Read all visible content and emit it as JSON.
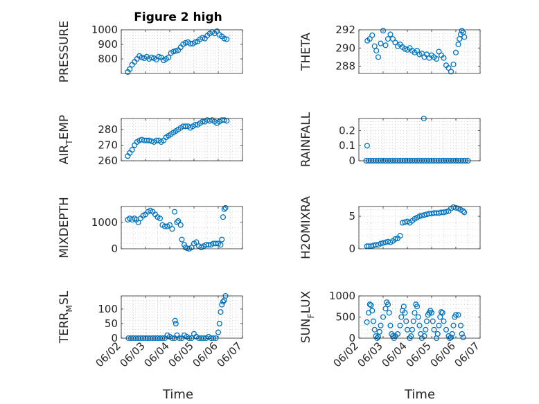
{
  "figure": {
    "title": "Figure 2 high",
    "x_axis_label": "Time"
  },
  "colors": {
    "marker": "#0072BD",
    "axis": "#262626",
    "grid": "#c8c8c8"
  },
  "chart_data": [
    {
      "type": "scatter",
      "title": "Figure 2 high",
      "ylabel": "PRESSURE",
      "ylabel_sub": "",
      "ylim": [
        700,
        1000
      ],
      "yticks": [
        800,
        900,
        1000
      ],
      "yticklabels": [
        "800",
        "900",
        "1000"
      ],
      "xlim": [
        2.0,
        7.0
      ],
      "xticks": [],
      "xticklabels": [],
      "grid": true,
      "points": {
        "x": [
          2.27,
          2.35,
          2.45,
          2.55,
          2.65,
          2.75,
          2.85,
          2.95,
          3.05,
          3.15,
          3.25,
          3.35,
          3.45,
          3.55,
          3.65,
          3.75,
          3.85,
          3.95,
          4.05,
          4.15,
          4.25,
          4.35,
          4.45,
          4.55,
          4.65,
          4.75,
          4.85,
          4.95,
          5.05,
          5.15,
          5.25,
          5.35,
          5.45,
          5.55,
          5.65,
          5.75,
          5.85,
          5.95,
          6.05,
          6.15,
          6.25,
          6.35
        ],
        "y": [
          710,
          730,
          760,
          780,
          800,
          820,
          810,
          805,
          815,
          800,
          810,
          805,
          795,
          815,
          810,
          790,
          800,
          810,
          840,
          850,
          855,
          860,
          880,
          900,
          910,
          915,
          905,
          905,
          915,
          920,
          935,
          945,
          940,
          960,
          975,
          985,
          975,
          990,
          965,
          955,
          940,
          935
        ]
      }
    },
    {
      "type": "scatter",
      "title": "",
      "ylabel": "THETA",
      "ylabel_sub": "",
      "ylim": [
        287.2,
        292.0
      ],
      "yticks": [
        288,
        290,
        292
      ],
      "yticklabels": [
        "288",
        "290",
        "292"
      ],
      "xlim": [
        2.0,
        7.0
      ],
      "xticks": [],
      "xticklabels": [],
      "grid": true,
      "points": {
        "x": [
          2.35,
          2.45,
          2.55,
          2.65,
          2.72,
          2.8,
          2.9,
          3.0,
          3.1,
          3.2,
          3.3,
          3.4,
          3.5,
          3.6,
          3.7,
          3.8,
          3.9,
          4.0,
          4.1,
          4.2,
          4.3,
          4.4,
          4.5,
          4.6,
          4.7,
          4.8,
          4.9,
          5.0,
          5.1,
          5.2,
          5.3,
          5.4,
          5.5,
          5.6,
          5.7,
          5.8,
          5.9,
          6.0,
          6.1,
          6.15,
          6.2,
          6.25,
          6.3,
          6.35
        ],
        "y": [
          290.8,
          291.0,
          291.4,
          290.2,
          289.7,
          289.0,
          290.5,
          291.9,
          290.3,
          291.0,
          291.5,
          291.0,
          290.6,
          290.2,
          290.4,
          290.1,
          289.9,
          289.8,
          290.0,
          289.7,
          289.5,
          289.7,
          289.3,
          289.4,
          289.0,
          289.3,
          288.9,
          289.2,
          289.0,
          288.8,
          289.6,
          289.2,
          288.9,
          288.1,
          287.8,
          287.4,
          288.2,
          289.5,
          290.4,
          291.0,
          291.5,
          291.9,
          291.7,
          291.2
        ]
      }
    },
    {
      "type": "scatter",
      "title": "",
      "ylabel": "AIR",
      "ylabel_sub": "T",
      "ylabel_suffix": "EMP",
      "ylim": [
        260,
        287
      ],
      "yticks": [
        260,
        270,
        280
      ],
      "yticklabels": [
        "260",
        "270",
        "280"
      ],
      "xlim": [
        2.0,
        7.0
      ],
      "xticks": [],
      "xticklabels": [],
      "grid": true,
      "points": {
        "x": [
          2.27,
          2.35,
          2.45,
          2.55,
          2.65,
          2.75,
          2.85,
          2.95,
          3.05,
          3.15,
          3.25,
          3.35,
          3.45,
          3.55,
          3.65,
          3.75,
          3.85,
          3.95,
          4.05,
          4.15,
          4.25,
          4.35,
          4.45,
          4.55,
          4.65,
          4.75,
          4.85,
          4.95,
          5.05,
          5.15,
          5.25,
          5.35,
          5.45,
          5.55,
          5.65,
          5.75,
          5.85,
          5.95,
          6.05,
          6.15,
          6.25,
          6.35
        ],
        "y": [
          263,
          265,
          267,
          270,
          272,
          273,
          273.5,
          273,
          273,
          273,
          272.5,
          272,
          273,
          273,
          272,
          273,
          275,
          276,
          277,
          278,
          279,
          280,
          281,
          282,
          282,
          282,
          281,
          282,
          283,
          283,
          284,
          285,
          285,
          286,
          285.5,
          286,
          285,
          284,
          285,
          286,
          286,
          285.5
        ]
      }
    },
    {
      "type": "scatter",
      "title": "",
      "ylabel": "RAINFALL",
      "ylabel_sub": "",
      "ylim": [
        0,
        0.28
      ],
      "yticks": [
        0,
        0.1,
        0.2
      ],
      "yticklabels": [
        "0",
        "0.1",
        "0.2"
      ],
      "xlim": [
        2.0,
        7.0
      ],
      "xticks": [],
      "xticklabels": [],
      "grid": true,
      "points": {
        "x": [
          2.3,
          2.4,
          2.5,
          2.6,
          2.7,
          2.8,
          2.9,
          3.0,
          3.1,
          3.2,
          3.3,
          3.4,
          3.5,
          3.6,
          3.7,
          3.8,
          3.9,
          4.0,
          4.1,
          4.2,
          4.3,
          4.4,
          4.5,
          4.6,
          4.7,
          4.8,
          4.9,
          5.0,
          5.1,
          5.2,
          5.3,
          5.4,
          5.5,
          5.6,
          5.7,
          5.8,
          5.9,
          6.0,
          6.1,
          6.2,
          6.3,
          6.4,
          6.5,
          2.34,
          4.68
        ],
        "y": [
          0,
          0,
          0,
          0,
          0,
          0,
          0,
          0,
          0,
          0,
          0,
          0,
          0,
          0,
          0,
          0,
          0,
          0,
          0,
          0,
          0,
          0,
          0,
          0,
          0,
          0,
          0,
          0,
          0,
          0,
          0,
          0,
          0,
          0,
          0,
          0,
          0,
          0,
          0,
          0,
          0,
          0,
          0,
          0.1,
          0.28
        ]
      }
    },
    {
      "type": "scatter",
      "title": "",
      "ylabel": "MIXDEPTH",
      "ylabel_sub": "",
      "ylim": [
        0,
        1600
      ],
      "yticks": [
        0,
        1000
      ],
      "yticklabels": [
        "0",
        "1000"
      ],
      "xlim": [
        2.0,
        7.0
      ],
      "xticks": [],
      "xticklabels": [],
      "grid": true,
      "points": {
        "x": [
          2.27,
          2.35,
          2.45,
          2.55,
          2.62,
          2.7,
          2.8,
          2.9,
          3.0,
          3.1,
          3.2,
          3.3,
          3.4,
          3.5,
          3.6,
          3.7,
          3.8,
          3.9,
          4.0,
          4.1,
          4.2,
          4.3,
          4.35,
          4.45,
          4.5,
          4.6,
          4.65,
          4.72,
          4.8,
          4.9,
          5.0,
          5.1,
          5.2,
          5.3,
          5.4,
          5.5,
          5.6,
          5.7,
          5.8,
          5.9,
          6.0,
          6.1,
          6.15,
          6.2,
          6.25,
          6.3
        ],
        "y": [
          1100,
          1150,
          1100,
          1150,
          1100,
          1000,
          1150,
          1250,
          1300,
          1400,
          1450,
          1400,
          1300,
          1200,
          1150,
          900,
          850,
          850,
          900,
          750,
          1400,
          1000,
          1050,
          900,
          350,
          150,
          50,
          20,
          0,
          50,
          200,
          250,
          100,
          50,
          100,
          150,
          150,
          150,
          200,
          200,
          200,
          150,
          350,
          1200,
          1500,
          1550
        ]
      }
    },
    {
      "type": "scatter",
      "title": "",
      "ylabel": "H2OMIXRA",
      "ylabel_sub": "",
      "ylim": [
        0,
        6.5
      ],
      "yticks": [
        0,
        5
      ],
      "yticklabels": [
        "0",
        "5"
      ],
      "xlim": [
        2.0,
        7.0
      ],
      "xticks": [],
      "xticklabels": [],
      "grid": true,
      "points": {
        "x": [
          2.33,
          2.4,
          2.5,
          2.6,
          2.7,
          2.8,
          2.9,
          3.0,
          3.1,
          3.2,
          3.3,
          3.4,
          3.5,
          3.6,
          3.7,
          3.8,
          3.9,
          4.0,
          4.1,
          4.2,
          4.3,
          4.4,
          4.5,
          4.6,
          4.7,
          4.8,
          4.9,
          5.0,
          5.1,
          5.2,
          5.3,
          5.4,
          5.5,
          5.6,
          5.7,
          5.8,
          5.9,
          6.0,
          6.1,
          6.2,
          6.3,
          6.35
        ],
        "y": [
          0.4,
          0.4,
          0.4,
          0.5,
          0.6,
          0.6,
          0.8,
          0.9,
          1.0,
          1.1,
          1.0,
          1.2,
          1.5,
          1.6,
          2.0,
          4.0,
          4.1,
          4.2,
          4.0,
          4.3,
          4.6,
          4.8,
          5.0,
          5.1,
          5.2,
          5.3,
          5.4,
          5.4,
          5.5,
          5.5,
          5.5,
          5.6,
          5.6,
          5.7,
          5.8,
          6.2,
          6.4,
          6.3,
          6.2,
          6.0,
          5.8,
          5.6
        ]
      }
    },
    {
      "type": "scatter",
      "title": "",
      "ylabel": "TERR",
      "ylabel_sub": "M",
      "ylabel_suffix": "SL",
      "ylim": [
        0,
        145
      ],
      "yticks": [
        0,
        50,
        100
      ],
      "yticklabels": [
        "0",
        "50",
        "100"
      ],
      "xlim": [
        2.0,
        7.0
      ],
      "xticks": [
        2.0,
        3.0,
        4.0,
        5.0,
        6.0,
        7.0
      ],
      "xticklabels": [
        "06/02",
        "06/03",
        "06/04",
        "06/05",
        "06/06",
        "06/07"
      ],
      "grid": true,
      "points": {
        "x": [
          2.3,
          2.4,
          2.5,
          2.6,
          2.7,
          2.8,
          2.9,
          3.0,
          3.1,
          3.2,
          3.3,
          3.4,
          3.5,
          3.6,
          3.7,
          3.8,
          3.9,
          4.0,
          4.1,
          4.2,
          4.22,
          4.25,
          4.3,
          4.4,
          4.5,
          4.6,
          4.7,
          4.8,
          4.9,
          5.0,
          5.1,
          5.2,
          5.3,
          5.4,
          5.5,
          5.6,
          5.7,
          5.8,
          5.9,
          6.0,
          6.05,
          6.1,
          6.15,
          6.2,
          6.25,
          6.3
        ],
        "y": [
          0,
          0,
          0,
          0,
          0,
          0,
          0,
          0,
          0,
          0,
          0,
          0,
          0,
          0,
          0,
          0,
          10,
          5,
          0,
          0,
          60,
          50,
          10,
          0,
          0,
          10,
          5,
          0,
          0,
          15,
          5,
          0,
          0,
          0,
          0,
          5,
          0,
          0,
          0,
          20,
          50,
          90,
          115,
          125,
          130,
          145
        ]
      }
    },
    {
      "type": "scatter",
      "title": "",
      "ylabel": "SUN",
      "ylabel_sub": "F",
      "ylabel_suffix": "LUX",
      "ylim": [
        0,
        1000
      ],
      "yticks": [
        0,
        500,
        1000
      ],
      "yticklabels": [
        "0",
        "500",
        "1000"
      ],
      "xlim": [
        2.0,
        7.0
      ],
      "xticks": [
        2.0,
        3.0,
        4.0,
        5.0,
        6.0,
        7.0
      ],
      "xticklabels": [
        "06/02",
        "06/03",
        "06/04",
        "06/05",
        "06/06",
        "06/07"
      ],
      "grid": true,
      "points": {
        "x": [
          2.33,
          2.4,
          2.45,
          2.5,
          2.55,
          2.6,
          2.65,
          2.7,
          2.75,
          2.8,
          2.85,
          2.9,
          3.0,
          3.1,
          3.15,
          3.2,
          3.25,
          3.3,
          3.35,
          3.4,
          3.45,
          3.5,
          3.6,
          3.7,
          3.75,
          3.8,
          3.85,
          3.9,
          3.95,
          4.0,
          4.1,
          4.15,
          4.2,
          4.25,
          4.3,
          4.35,
          4.4,
          4.45,
          4.5,
          4.55,
          4.6,
          4.7,
          4.75,
          4.8,
          4.85,
          4.9,
          4.95,
          5.0,
          5.05,
          5.1,
          5.2,
          5.25,
          5.3,
          5.35,
          5.4,
          5.45,
          5.5,
          5.6,
          5.7,
          5.75,
          5.8,
          5.85,
          5.9,
          5.95,
          6.0,
          6.1,
          6.2,
          6.25,
          6.3
        ],
        "y": [
          380,
          600,
          800,
          780,
          650,
          400,
          200,
          50,
          0,
          30,
          150,
          300,
          500,
          700,
          850,
          800,
          600,
          300,
          100,
          50,
          0,
          50,
          100,
          300,
          500,
          650,
          750,
          600,
          400,
          200,
          0,
          50,
          200,
          400,
          600,
          800,
          750,
          500,
          300,
          100,
          0,
          50,
          200,
          400,
          550,
          600,
          650,
          600,
          400,
          200,
          0,
          100,
          300,
          500,
          620,
          600,
          400,
          200,
          50,
          0,
          20,
          100,
          300,
          500,
          550,
          550,
          300,
          100,
          20
        ]
      }
    }
  ]
}
